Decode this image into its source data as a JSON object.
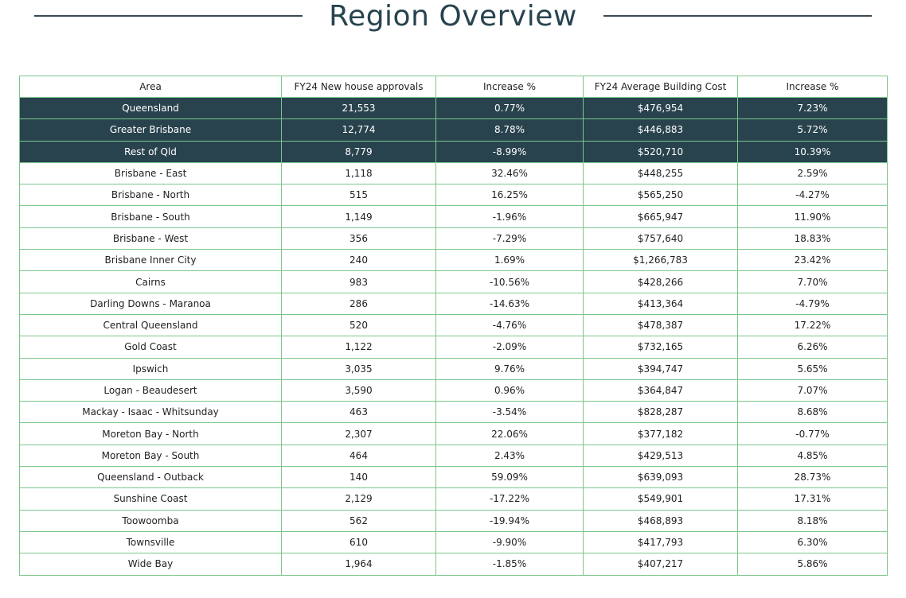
{
  "title": "Region Overview",
  "table": {
    "headers": [
      "Area",
      "FY24 New house approvals",
      "Increase %",
      "FY24 Average Building Cost",
      "Increase %"
    ],
    "summary_rows": [
      [
        "Queensland",
        "21,553",
        "0.77%",
        "$476,954",
        "7.23%"
      ],
      [
        "Greater Brisbane",
        "12,774",
        "8.78%",
        "$446,883",
        "5.72%"
      ],
      [
        "Rest of Qld",
        "8,779",
        "-8.99%",
        "$520,710",
        "10.39%"
      ]
    ],
    "rows": [
      [
        "Brisbane - East",
        "1,118",
        "32.46%",
        "$448,255",
        "2.59%"
      ],
      [
        "Brisbane - North",
        "515",
        "16.25%",
        "$565,250",
        "-4.27%"
      ],
      [
        "Brisbane - South",
        "1,149",
        "-1.96%",
        "$665,947",
        "11.90%"
      ],
      [
        "Brisbane - West",
        "356",
        "-7.29%",
        "$757,640",
        "18.83%"
      ],
      [
        "Brisbane Inner City",
        "240",
        "1.69%",
        "$1,266,783",
        "23.42%"
      ],
      [
        "Cairns",
        "983",
        "-10.56%",
        "$428,266",
        "7.70%"
      ],
      [
        "Darling Downs - Maranoa",
        "286",
        "-14.63%",
        "$413,364",
        "-4.79%"
      ],
      [
        "Central Queensland",
        "520",
        "-4.76%",
        "$478,387",
        "17.22%"
      ],
      [
        "Gold Coast",
        "1,122",
        "-2.09%",
        "$732,165",
        "6.26%"
      ],
      [
        "Ipswich",
        "3,035",
        "9.76%",
        "$394,747",
        "5.65%"
      ],
      [
        "Logan - Beaudesert",
        "3,590",
        "0.96%",
        "$364,847",
        "7.07%"
      ],
      [
        "Mackay - Isaac - Whitsunday",
        "463",
        "-3.54%",
        "$828,287",
        "8.68%"
      ],
      [
        "Moreton Bay - North",
        "2,307",
        "22.06%",
        "$377,182",
        "-0.77%"
      ],
      [
        "Moreton Bay - South",
        "464",
        "2.43%",
        "$429,513",
        "4.85%"
      ],
      [
        "Queensland - Outback",
        "140",
        "59.09%",
        "$639,093",
        "28.73%"
      ],
      [
        "Sunshine Coast",
        "2,129",
        "-17.22%",
        "$549,901",
        "17.31%"
      ],
      [
        "Toowoomba",
        "562",
        "-19.94%",
        "$468,893",
        "8.18%"
      ],
      [
        "Townsville",
        "610",
        "-9.90%",
        "$417,793",
        "6.30%"
      ],
      [
        "Wide Bay",
        "1,964",
        "-1.85%",
        "$407,217",
        "5.86%"
      ]
    ]
  },
  "colors": {
    "title": "#27444f",
    "summary_row_bg": "#29434e",
    "border": "#7cc68b"
  }
}
